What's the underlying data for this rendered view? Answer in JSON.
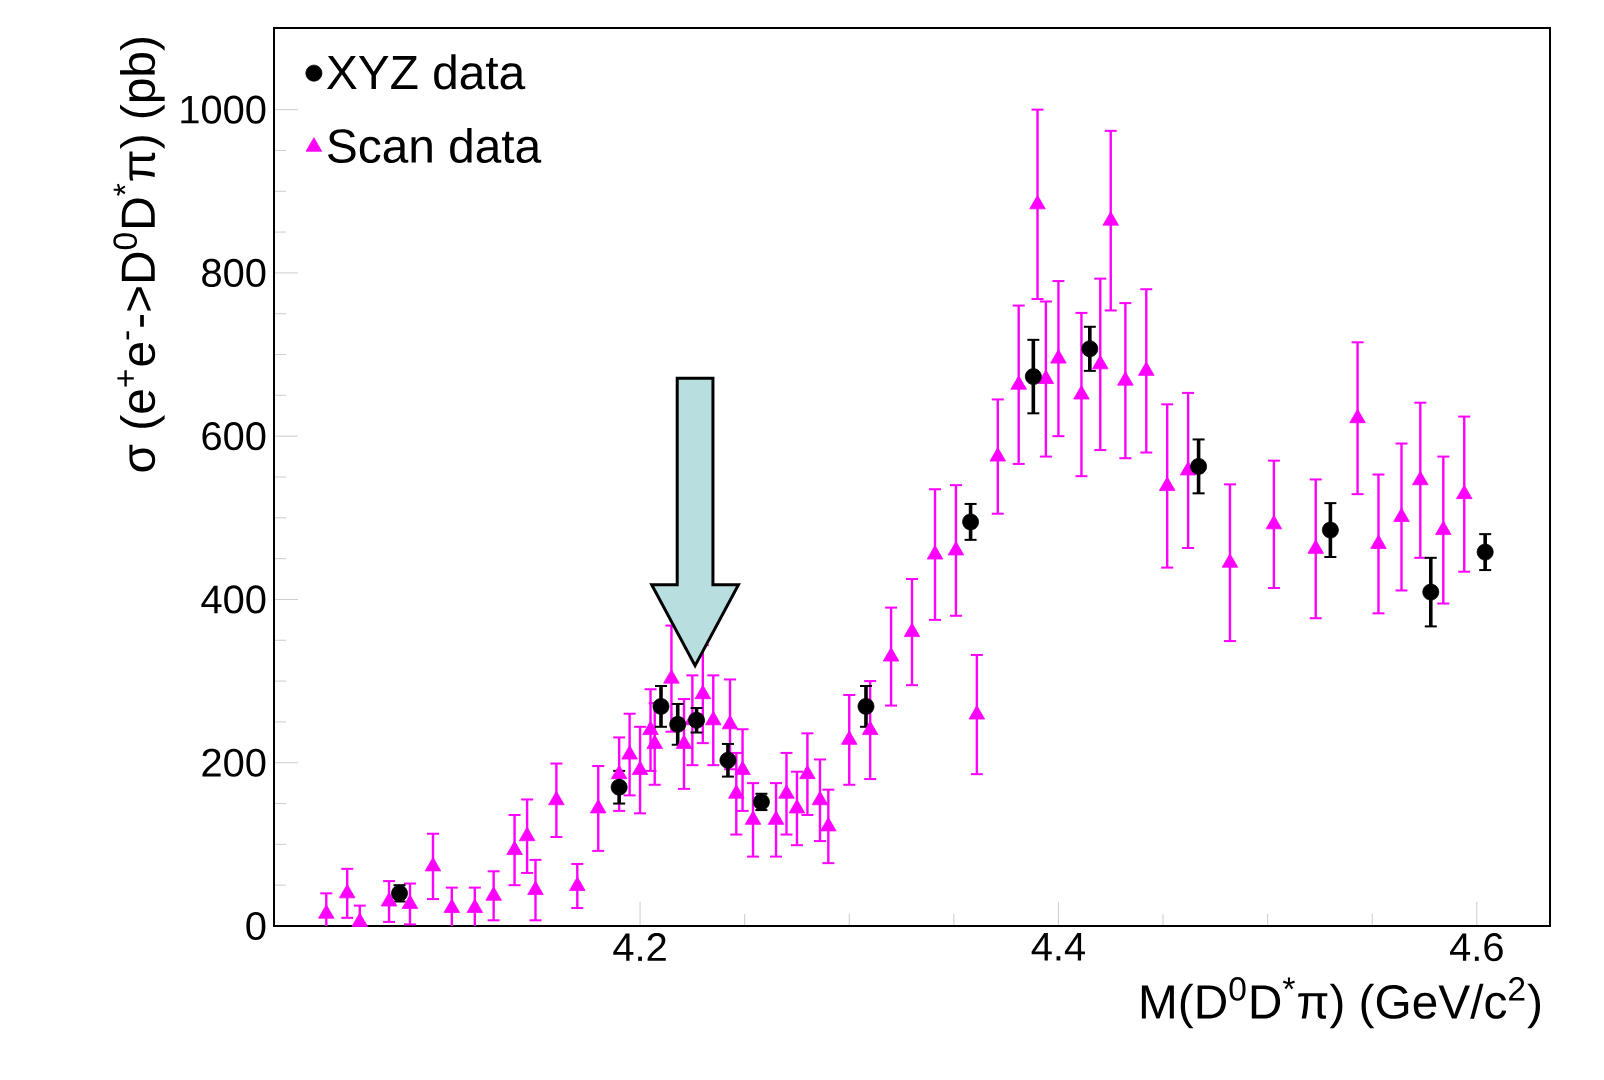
{
  "chart_data": {
    "type": "scatter",
    "xlabel": "M(D$^{0}$D$^{*}$π) (GeV/c$^{2}$)",
    "ylabel": "σ (e$^{+}$e$^{-}$->D$^{0}$D$^{*}$π) (pb)",
    "xlim": [
      4.025,
      4.635
    ],
    "ylim": [
      0,
      1100
    ],
    "xticks": [
      4.2,
      4.4,
      4.6
    ],
    "yticks": [
      0,
      200,
      400,
      600,
      800,
      1000
    ],
    "legend": "top left",
    "series": [
      {
        "name": "XYZ data",
        "color": "#000000",
        "marker": "circle",
        "x": [
          4.085,
          4.19,
          4.21,
          4.218,
          4.227,
          4.242,
          4.258,
          4.308,
          4.358,
          4.388,
          4.415,
          4.467,
          4.53,
          4.578,
          4.604
        ],
        "values": [
          40,
          170,
          269,
          247,
          252,
          203,
          152,
          269,
          495,
          673,
          707,
          563,
          485,
          409,
          458
        ],
        "errors": [
          10,
          20,
          25,
          25,
          15,
          20,
          10,
          25,
          22,
          45,
          27,
          33,
          33,
          42,
          22
        ]
      },
      {
        "name": "Scan data",
        "color": "#ff00ff",
        "marker": "triangle",
        "x": [
          4.05,
          4.06,
          4.066,
          4.08,
          4.09,
          4.101,
          4.11,
          4.121,
          4.13,
          4.14,
          4.146,
          4.15,
          4.16,
          4.17,
          4.18,
          4.19,
          4.195,
          4.2,
          4.205,
          4.207,
          4.215,
          4.221,
          4.225,
          4.23,
          4.235,
          4.243,
          4.246,
          4.249,
          4.254,
          4.265,
          4.27,
          4.275,
          4.28,
          4.286,
          4.29,
          4.3,
          4.31,
          4.32,
          4.33,
          4.341,
          4.351,
          4.361,
          4.371,
          4.381,
          4.39,
          4.394,
          4.4,
          4.411,
          4.42,
          4.425,
          4.432,
          4.442,
          4.452,
          4.462,
          4.482,
          4.503,
          4.523,
          4.543,
          4.553,
          4.564,
          4.573,
          4.584,
          4.594
        ],
        "values": [
          15,
          40,
          5,
          30,
          27,
          73,
          22,
          22,
          37,
          93,
          110,
          44,
          154,
          49,
          144,
          186,
          210,
          191,
          240,
          223,
          303,
          223,
          252,
          284,
          252,
          247,
          162,
          191,
          130,
          130,
          162,
          144,
          186,
          154,
          122,
          228,
          240,
          330,
          360,
          455,
          460,
          259,
          575,
          663,
          884,
          670,
          695,
          651,
          688,
          864,
          668,
          680,
          539,
          558,
          445,
          492,
          462,
          622,
          468,
          501,
          546,
          485,
          529
        ],
        "errors": [
          25,
          30,
          20,
          25,
          25,
          40,
          25,
          25,
          30,
          43,
          45,
          37,
          45,
          27,
          52,
          45,
          50,
          53,
          50,
          50,
          65,
          55,
          55,
          60,
          55,
          55,
          50,
          50,
          45,
          45,
          50,
          45,
          50,
          50,
          45,
          55,
          60,
          60,
          65,
          80,
          80,
          73,
          70,
          97,
          116,
          95,
          95,
          100,
          105,
          110,
          95,
          100,
          100,
          95,
          96,
          78,
          85,
          93,
          85,
          90,
          95,
          90,
          95
        ]
      }
    ]
  }
}
